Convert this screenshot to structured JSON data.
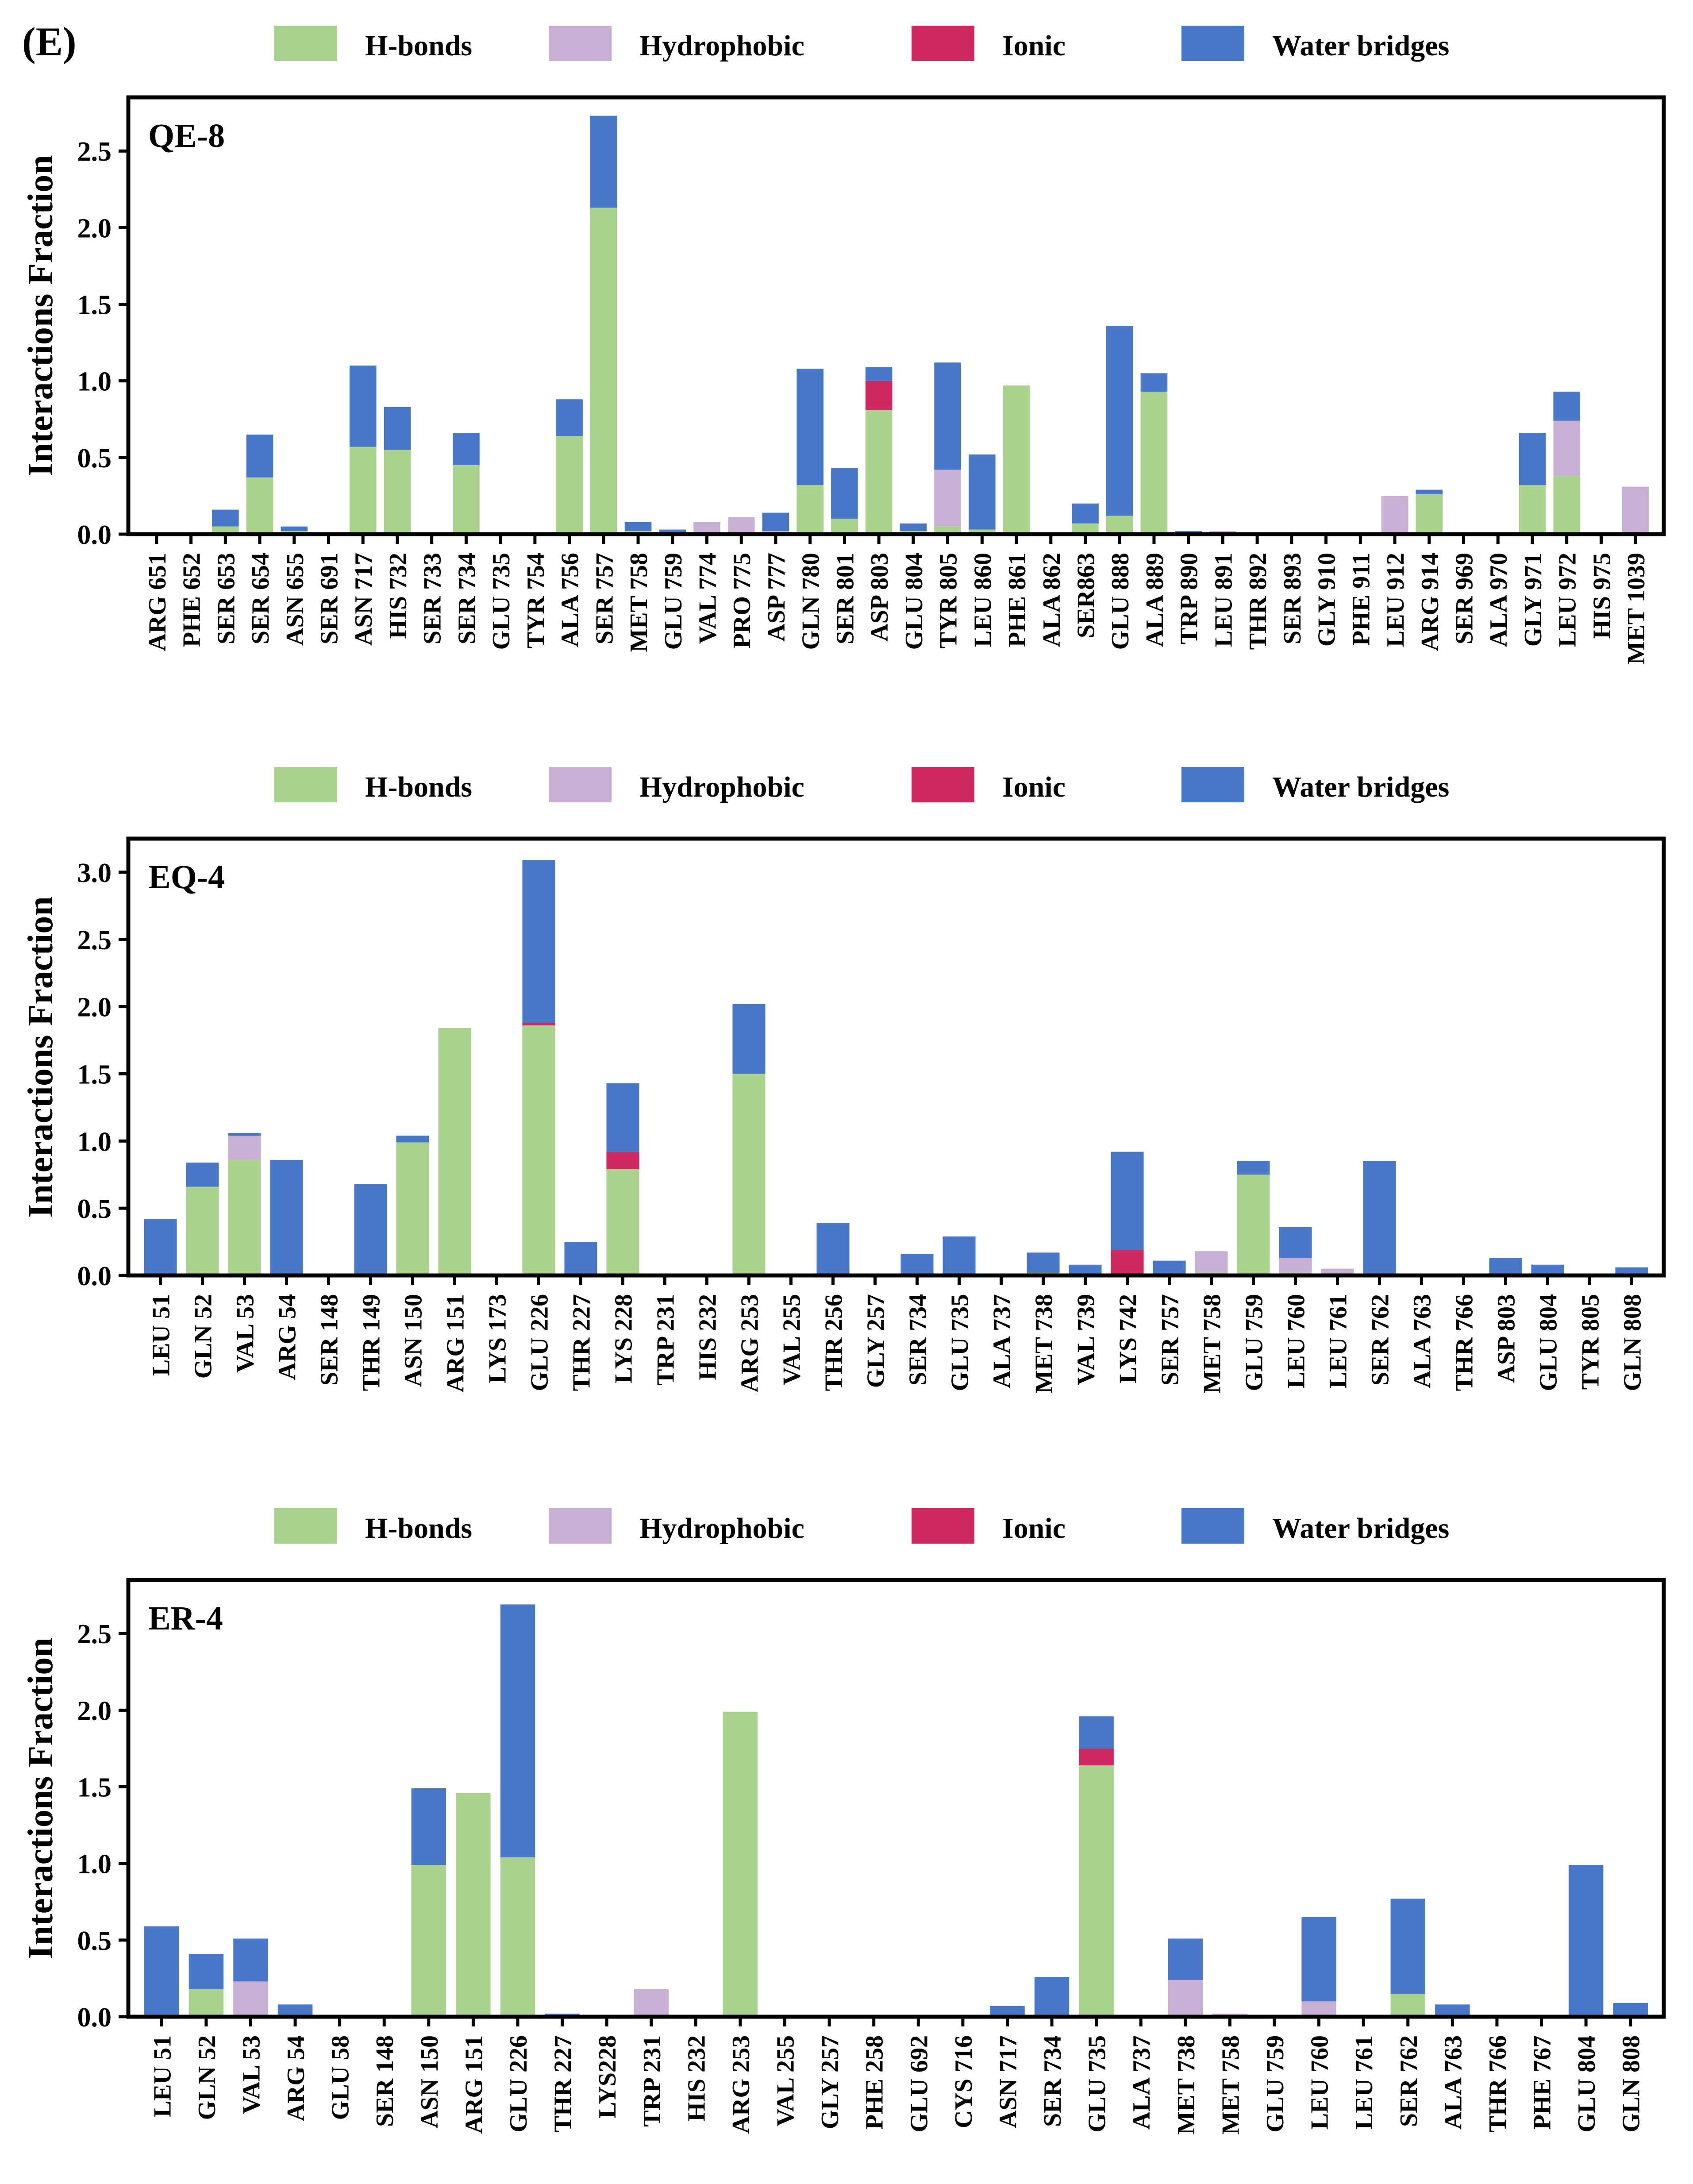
{
  "panel_label": "(E)",
  "legend": [
    {
      "key": "hb",
      "label": "H-bonds",
      "color": "#a9d28c"
    },
    {
      "key": "hp",
      "label": "Hydrophobic",
      "color": "#c8b0d4"
    },
    {
      "key": "io",
      "label": "Ionic",
      "color": "#d02860"
    },
    {
      "key": "wb",
      "label": "Water bridges",
      "color": "#4a78c8"
    }
  ],
  "chart_data": [
    {
      "type": "bar",
      "stacked": true,
      "title": "QE-8",
      "ylabel": "Interactions Fraction",
      "ylim": [
        0,
        2.85
      ],
      "yticks": [
        0.0,
        0.5,
        1.0,
        1.5,
        2.0,
        2.5
      ],
      "ytick_labels": [
        "0.0",
        "0.5",
        "1.0",
        "1.5",
        "2.0",
        "2.5"
      ],
      "categories": [
        "ARG 651",
        "PHE 652",
        "SER 653",
        "SER 654",
        "ASN 655",
        "SER 691",
        "ASN 717",
        "HIS 732",
        "SER 733",
        "SER 734",
        "GLU 735",
        "TYR 754",
        "ALA 756",
        "SER 757",
        "MET 758",
        "GLU 759",
        "VAL 774",
        "PRO 775",
        "ASP 777",
        "GLN 780",
        "SER 801",
        "ASP 803",
        "GLU 804",
        "TYR 805",
        "LEU 860",
        "PHE 861",
        "ALA 862",
        "SER863",
        "GLU 888",
        "ALA 889",
        "TRP 890",
        "LEU 891",
        "THR 892",
        "SER 893",
        "GLY 910",
        "PHE 911",
        "LEU 912",
        "ARG 914",
        "SER 969",
        "ALA 970",
        "GLY 971",
        "LEU 972",
        "HIS 975",
        "MET 1039"
      ],
      "series": [
        {
          "name": "H-bonds",
          "values": [
            0,
            0,
            0.05,
            0.37,
            0.02,
            0,
            0.57,
            0.55,
            0,
            0.45,
            0,
            0,
            0.64,
            2.13,
            0.02,
            0,
            0,
            0,
            0,
            0.32,
            0.1,
            0.81,
            0.02,
            0.05,
            0.03,
            0.97,
            0,
            0.07,
            0.12,
            0.93,
            0,
            0,
            0,
            0,
            0,
            0,
            0,
            0.26,
            0,
            0,
            0.32,
            0.38,
            0,
            0
          ]
        },
        {
          "name": "Hydrophobic",
          "values": [
            0,
            0,
            0,
            0,
            0,
            0,
            0,
            0,
            0,
            0,
            0,
            0,
            0,
            0,
            0,
            0,
            0.08,
            0.11,
            0.02,
            0,
            0,
            0,
            0,
            0.37,
            0,
            0,
            0,
            0,
            0,
            0,
            0,
            0.02,
            0,
            0,
            0,
            0,
            0.25,
            0,
            0,
            0,
            0,
            0.36,
            0,
            0.31
          ]
        },
        {
          "name": "Ionic",
          "values": [
            0,
            0,
            0,
            0,
            0,
            0,
            0,
            0,
            0,
            0,
            0,
            0,
            0,
            0,
            0,
            0,
            0,
            0,
            0,
            0,
            0,
            0.19,
            0,
            0,
            0,
            0,
            0,
            0,
            0,
            0,
            0,
            0,
            0,
            0,
            0,
            0,
            0,
            0,
            0,
            0,
            0,
            0,
            0,
            0
          ]
        },
        {
          "name": "Water bridges",
          "values": [
            0,
            0,
            0.11,
            0.28,
            0.03,
            0,
            0.53,
            0.28,
            0,
            0.21,
            0,
            0,
            0.24,
            0.6,
            0.06,
            0.03,
            0,
            0,
            0.12,
            0.76,
            0.33,
            0.09,
            0.05,
            0.7,
            0.49,
            0,
            0,
            0.13,
            1.24,
            0.12,
            0.02,
            0,
            0,
            0,
            0,
            0,
            0,
            0.03,
            0,
            0,
            0.34,
            0.19,
            0,
            0
          ]
        }
      ]
    },
    {
      "type": "bar",
      "stacked": true,
      "title": "EQ-4",
      "ylabel": "Interactions Fraction",
      "ylim": [
        0,
        3.25
      ],
      "yticks": [
        0.0,
        0.5,
        1.0,
        1.5,
        2.0,
        2.5,
        3.0
      ],
      "ytick_labels": [
        "0.0",
        "0.5",
        "1.0",
        "1.5",
        "2.0",
        "2.5",
        "3.0"
      ],
      "categories": [
        "LEU 51",
        "GLN 52",
        "VAL 53",
        "ARG 54",
        "SER 148",
        "THR 149",
        "ASN 150",
        "ARG 151",
        "LYS 173",
        "GLU 226",
        "THR 227",
        "LYS 228",
        "TRP 231",
        "HIS 232",
        "ARG 253",
        "VAL 255",
        "THR 256",
        "GLY 257",
        "SER 734",
        "GLU 735",
        "ALA 737",
        "MET 738",
        "VAL 739",
        "LYS 742",
        "SER 757",
        "MET 758",
        "GLU 759",
        "LEU 760",
        "LEU 761",
        "SER 762",
        "ALA 763",
        "THR 766",
        "ASP 803",
        "GLU 804",
        "TYR 805",
        "GLN 808"
      ],
      "series": [
        {
          "name": "H-bonds",
          "values": [
            0,
            0.66,
            0.86,
            0,
            0,
            0,
            0.99,
            1.84,
            0,
            1.86,
            0,
            0.79,
            0,
            0,
            1.5,
            0,
            0,
            0,
            0,
            0,
            0,
            0.02,
            0,
            0,
            0,
            0.02,
            0.75,
            0.02,
            0,
            0,
            0,
            0,
            0,
            0,
            0,
            0
          ]
        },
        {
          "name": "Hydrophobic",
          "values": [
            0,
            0,
            0.18,
            0,
            0,
            0,
            0,
            0,
            0,
            0,
            0,
            0,
            0,
            0,
            0,
            0,
            0,
            0,
            0,
            0,
            0,
            0,
            0,
            0,
            0,
            0.16,
            0,
            0.11,
            0.05,
            0,
            0,
            0,
            0,
            0,
            0,
            0
          ]
        },
        {
          "name": "Ionic",
          "values": [
            0,
            0,
            0,
            0,
            0,
            0,
            0,
            0,
            0,
            0.02,
            0,
            0.13,
            0,
            0,
            0,
            0,
            0,
            0,
            0,
            0,
            0,
            0,
            0,
            0.19,
            0,
            0,
            0,
            0,
            0,
            0,
            0,
            0,
            0,
            0,
            0,
            0
          ]
        },
        {
          "name": "Water bridges",
          "values": [
            0.42,
            0.18,
            0.02,
            0.86,
            0,
            0.68,
            0.05,
            0,
            0,
            1.21,
            0.25,
            0.51,
            0,
            0,
            0.52,
            0,
            0.39,
            0,
            0.16,
            0.29,
            0,
            0.15,
            0.08,
            0.73,
            0.11,
            0,
            0.1,
            0.23,
            0,
            0.85,
            0,
            0,
            0.13,
            0.08,
            0,
            0.06
          ]
        }
      ]
    },
    {
      "type": "bar",
      "stacked": true,
      "title": "ER-4",
      "ylabel": "Interactions Fraction",
      "ylim": [
        0,
        2.85
      ],
      "yticks": [
        0.0,
        0.5,
        1.0,
        1.5,
        2.0,
        2.5
      ],
      "ytick_labels": [
        "0.0",
        "0.5",
        "1.0",
        "1.5",
        "2.0",
        "2.5"
      ],
      "categories": [
        "LEU 51",
        "GLN 52",
        "VAL 53",
        "ARG 54",
        "GLU 58",
        "SER 148",
        "ASN 150",
        "ARG 151",
        "GLU 226",
        "THR 227",
        "LYS228",
        "TRP 231",
        "HIS 232",
        "ARG 253",
        "VAL 255",
        "GLY 257",
        "PHE 258",
        "GLU 692",
        "CYS 716",
        "ASN 717",
        "SER 734",
        "GLU 735",
        "ALA 737",
        "MET 738",
        "MET 758",
        "GLU 759",
        "LEU 760",
        "LEU 761",
        "SER 762",
        "ALA 763",
        "THR 766",
        "PHE 767",
        "GLU 804",
        "GLN 808"
      ],
      "series": [
        {
          "name": "H-bonds",
          "values": [
            0,
            0.18,
            0,
            0,
            0,
            0,
            0.99,
            1.46,
            1.04,
            0,
            0,
            0,
            0,
            1.99,
            0,
            0,
            0,
            0,
            0,
            0,
            0,
            1.64,
            0,
            0,
            0,
            0,
            0,
            0,
            0.15,
            0,
            0,
            0,
            0,
            0
          ]
        },
        {
          "name": "Hydrophobic",
          "values": [
            0,
            0,
            0.23,
            0,
            0,
            0,
            0,
            0,
            0,
            0,
            0,
            0.18,
            0,
            0,
            0,
            0,
            0.01,
            0,
            0,
            0,
            0,
            0,
            0,
            0.24,
            0.02,
            0,
            0.1,
            0,
            0,
            0,
            0,
            0,
            0,
            0
          ]
        },
        {
          "name": "Ionic",
          "values": [
            0,
            0,
            0,
            0,
            0,
            0,
            0,
            0,
            0,
            0,
            0,
            0,
            0,
            0,
            0,
            0,
            0,
            0,
            0,
            0,
            0,
            0.11,
            0,
            0,
            0,
            0,
            0,
            0,
            0,
            0,
            0,
            0,
            0,
            0
          ]
        },
        {
          "name": "Water bridges",
          "values": [
            0.59,
            0.23,
            0.28,
            0.08,
            0,
            0,
            0.5,
            0,
            1.65,
            0.02,
            0,
            0,
            0,
            0,
            0,
            0,
            0,
            0,
            0,
            0.07,
            0.26,
            0.21,
            0,
            0.27,
            0,
            0,
            0.55,
            0,
            0.62,
            0.08,
            0.01,
            0.01,
            0.99,
            0.09
          ]
        }
      ]
    }
  ]
}
